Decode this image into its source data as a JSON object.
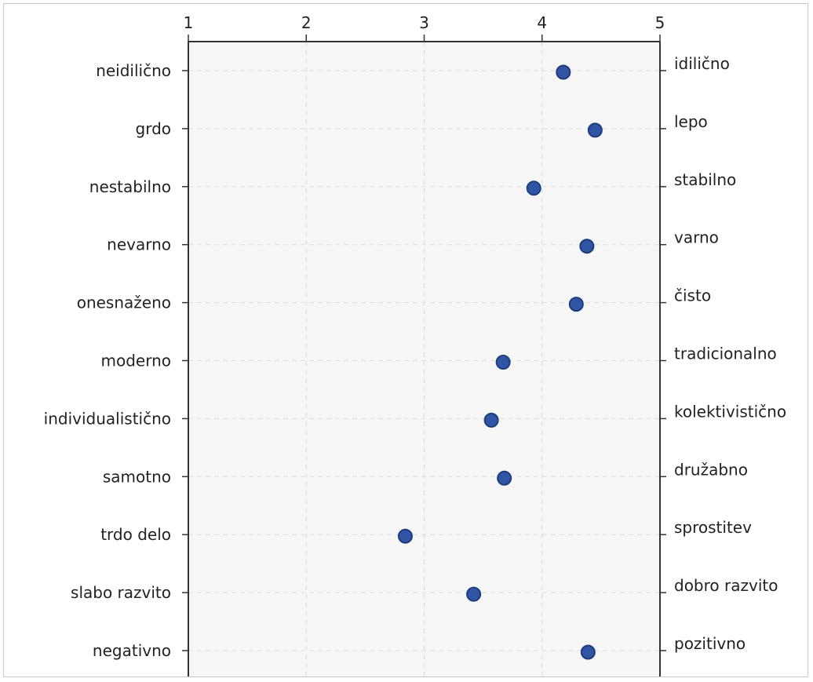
{
  "chart_data": {
    "type": "scatter",
    "orientation": "semantic-differential",
    "x_axis_position": "top",
    "xlim": [
      1,
      5
    ],
    "xticks": [
      "1",
      "2",
      "3",
      "4",
      "5"
    ],
    "grid": true,
    "grid_style": "dashed",
    "marker_color": "#2f55a4",
    "marker_edge_color": "#1d3c7e",
    "plot_background": "#f6f6f6",
    "items": [
      {
        "left": "neidilično",
        "right": "idilično",
        "value": 4.18
      },
      {
        "left": "grdo",
        "right": "lepo",
        "value": 4.45
      },
      {
        "left": "nestabilno",
        "right": "stabilno",
        "value": 3.93
      },
      {
        "left": "nevarno",
        "right": "varno",
        "value": 4.38
      },
      {
        "left": "onesnaženo",
        "right": "čisto",
        "value": 4.29
      },
      {
        "left": "moderno",
        "right": "tradicionalno",
        "value": 3.67
      },
      {
        "left": "individualistično",
        "right": "kolektivistično",
        "value": 3.57
      },
      {
        "left": "samotno",
        "right": "družabno",
        "value": 3.68
      },
      {
        "left": "trdo delo",
        "right": "sprostitev",
        "value": 2.84
      },
      {
        "left": "slabo razvito",
        "right": "dobro razvito",
        "value": 3.42
      },
      {
        "left": "negativno",
        "right": "pozitivno",
        "value": 4.39
      }
    ]
  }
}
